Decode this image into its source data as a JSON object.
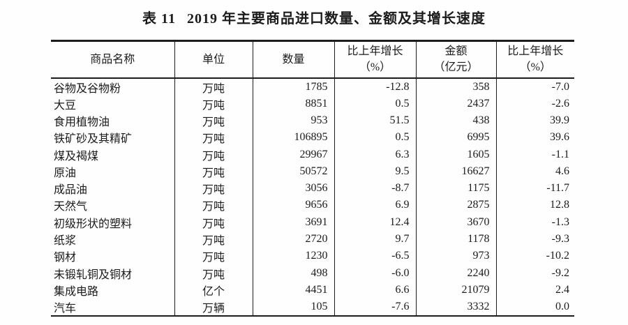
{
  "page": {
    "background": "#ffffff",
    "text_color": "#1b1b1b",
    "line_color": "#1c1c1c"
  },
  "title": {
    "prefix": "表 11",
    "text": "2019 年主要商品进口数量、金额及其增长速度"
  },
  "table": {
    "columns": [
      {
        "label": "商品名称",
        "sub": ""
      },
      {
        "label": "单位",
        "sub": ""
      },
      {
        "label": "数量",
        "sub": ""
      },
      {
        "label": "比上年增长",
        "sub": "（%）"
      },
      {
        "label": "金额",
        "sub": "（亿元）"
      },
      {
        "label": "比上年增长",
        "sub": "（%）"
      }
    ],
    "rows": [
      [
        "谷物及谷物粉",
        "万吨",
        "1785",
        "-12.8",
        "358",
        "-7.0"
      ],
      [
        "大豆",
        "万吨",
        "8851",
        "0.5",
        "2437",
        "-2.6"
      ],
      [
        "食用植物油",
        "万吨",
        "953",
        "51.5",
        "438",
        "39.9"
      ],
      [
        "铁矿砂及其精矿",
        "万吨",
        "106895",
        "0.5",
        "6995",
        "39.6"
      ],
      [
        "煤及褐煤",
        "万吨",
        "29967",
        "6.3",
        "1605",
        "-1.1"
      ],
      [
        "原油",
        "万吨",
        "50572",
        "9.5",
        "16627",
        "4.6"
      ],
      [
        "成品油",
        "万吨",
        "3056",
        "-8.7",
        "1175",
        "-11.7"
      ],
      [
        "天然气",
        "万吨",
        "9656",
        "6.9",
        "2875",
        "12.8"
      ],
      [
        "初级形状的塑料",
        "万吨",
        "3691",
        "12.4",
        "3670",
        "-1.3"
      ],
      [
        "纸浆",
        "万吨",
        "2720",
        "9.7",
        "1178",
        "-9.3"
      ],
      [
        "钢材",
        "万吨",
        "1230",
        "-6.5",
        "973",
        "-10.2"
      ],
      [
        "未锻轧铜及铜材",
        "万吨",
        "498",
        "-6.0",
        "2240",
        "-9.2"
      ],
      [
        "集成电路",
        "亿个",
        "4451",
        "6.6",
        "21079",
        "2.4"
      ],
      [
        "汽车",
        "万辆",
        "105",
        "-7.6",
        "3332",
        "0.0"
      ]
    ]
  }
}
